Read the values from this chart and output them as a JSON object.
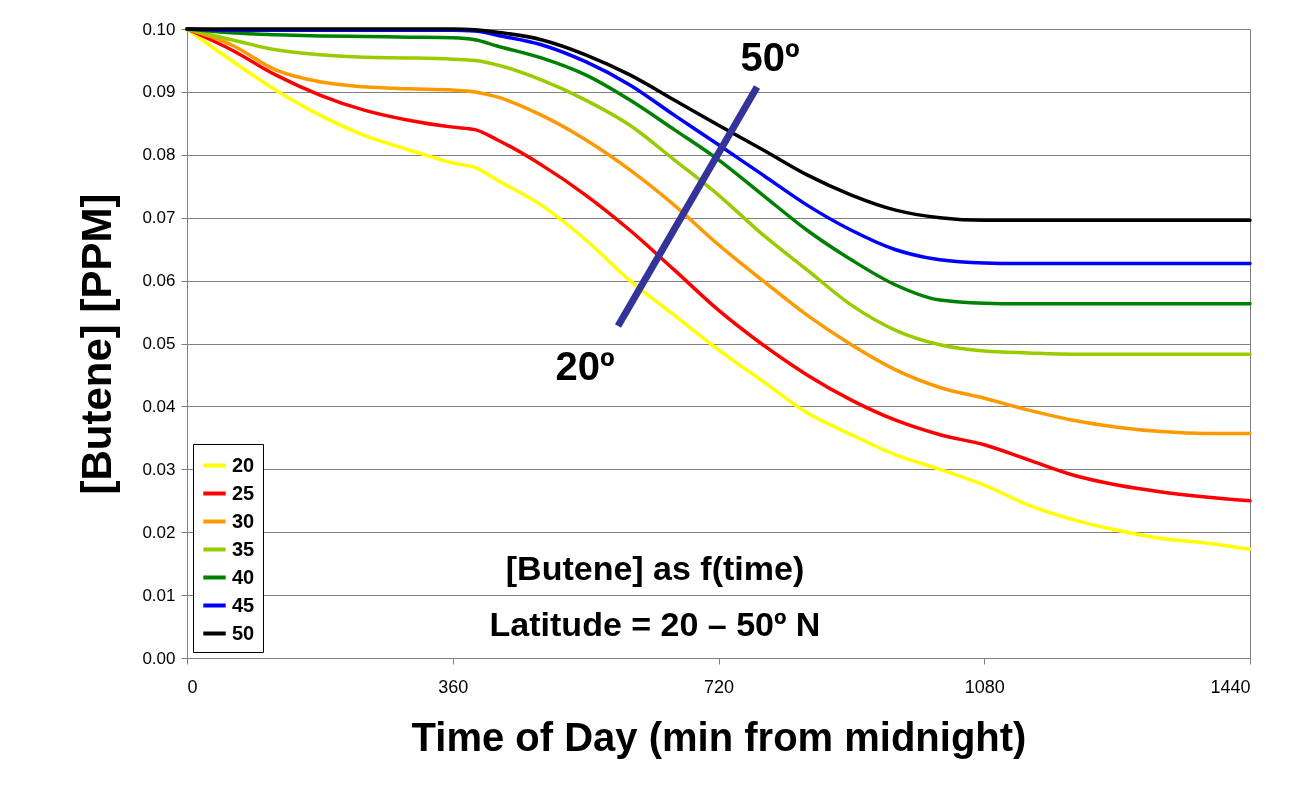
{
  "chart_data": {
    "type": "line",
    "xlabel": "Time of Day (min from midnight)",
    "ylabel": "[Butene] [PPM]",
    "x": [
      0,
      60,
      120,
      180,
      240,
      300,
      360,
      390,
      420,
      480,
      540,
      600,
      660,
      720,
      780,
      840,
      900,
      960,
      1020,
      1080,
      1140,
      1200,
      1260,
      1320,
      1380,
      1440
    ],
    "series": [
      {
        "name": "20",
        "color": "#ffff00",
        "values": [
          0.1,
          0.095,
          0.0903,
          0.0863,
          0.0831,
          0.0808,
          0.0787,
          0.078,
          0.076,
          0.072,
          0.0665,
          0.06,
          0.0545,
          0.049,
          0.044,
          0.039,
          0.0355,
          0.0323,
          0.03,
          0.0275,
          0.0243,
          0.022,
          0.0203,
          0.019,
          0.0183,
          0.0173
        ]
      },
      {
        "name": "25",
        "color": "#ff0000",
        "values": [
          0.1,
          0.0967,
          0.0927,
          0.0895,
          0.0871,
          0.0855,
          0.0844,
          0.084,
          0.0824,
          0.0784,
          0.0736,
          0.068,
          0.0617,
          0.0553,
          0.0498,
          0.045,
          0.041,
          0.0378,
          0.0355,
          0.0339,
          0.0315,
          0.0291,
          0.0275,
          0.0264,
          0.0256,
          0.025
        ]
      },
      {
        "name": "30",
        "color": "#ff9900",
        "values": [
          0.1,
          0.0975,
          0.0935,
          0.0916,
          0.0908,
          0.0905,
          0.0903,
          0.09,
          0.0892,
          0.0863,
          0.0824,
          0.0776,
          0.072,
          0.0657,
          0.06,
          0.0545,
          0.0498,
          0.0458,
          0.043,
          0.0413,
          0.0394,
          0.0378,
          0.0367,
          0.036,
          0.0357,
          0.0357
        ]
      },
      {
        "name": "35",
        "color": "#99cc00",
        "values": [
          0.1,
          0.0983,
          0.0967,
          0.0959,
          0.0955,
          0.0954,
          0.0952,
          0.095,
          0.0943,
          0.0919,
          0.0887,
          0.0847,
          0.0792,
          0.0736,
          0.0673,
          0.0617,
          0.0561,
          0.0521,
          0.0498,
          0.0488,
          0.0485,
          0.0483,
          0.0483,
          0.0483,
          0.0483,
          0.0483
        ]
      },
      {
        "name": "40",
        "color": "#008000",
        "values": [
          0.1,
          0.0994,
          0.0991,
          0.0989,
          0.0988,
          0.0987,
          0.0986,
          0.0983,
          0.0973,
          0.0954,
          0.0927,
          0.0887,
          0.084,
          0.0792,
          0.0736,
          0.068,
          0.0633,
          0.0593,
          0.0569,
          0.0564,
          0.0563,
          0.0563,
          0.0563,
          0.0563,
          0.0563,
          0.0563
        ]
      },
      {
        "name": "45",
        "color": "#0000ff",
        "values": [
          0.1,
          0.0998,
          0.0998,
          0.0998,
          0.0998,
          0.0998,
          0.0998,
          0.0997,
          0.099,
          0.0975,
          0.0948,
          0.0911,
          0.0863,
          0.0816,
          0.0768,
          0.072,
          0.068,
          0.0649,
          0.0633,
          0.0628,
          0.0627,
          0.0627,
          0.0627,
          0.0627,
          0.0627,
          0.0627
        ]
      },
      {
        "name": "50",
        "color": "#000000",
        "values": [
          0.1,
          0.1,
          0.1,
          0.1,
          0.1,
          0.1,
          0.1,
          0.0999,
          0.0995,
          0.0983,
          0.0959,
          0.0927,
          0.0887,
          0.0847,
          0.0808,
          0.0768,
          0.0736,
          0.0712,
          0.07,
          0.0696,
          0.0696,
          0.0696,
          0.0696,
          0.0696,
          0.0696,
          0.0696
        ]
      }
    ],
    "xlim": [
      0,
      1440
    ],
    "xticks": [
      0,
      360,
      720,
      1080,
      1440
    ],
    "ylim": [
      0,
      0.1
    ],
    "yticks": [
      {
        "value": 0,
        "label": "0.00"
      },
      {
        "value": 0.01,
        "label": "0.01"
      },
      {
        "value": 0.02,
        "label": "0.02"
      },
      {
        "value": 0.03,
        "label": "0.03"
      },
      {
        "value": 0.04,
        "label": "0.04"
      },
      {
        "value": 0.05,
        "label": "0.05"
      },
      {
        "value": 0.06,
        "label": "0.06"
      },
      {
        "value": 0.07,
        "label": "0.07"
      },
      {
        "value": 0.08,
        "label": "0.08"
      },
      {
        "value": 0.09,
        "label": "0.09"
      },
      {
        "value": 0.1,
        "label": "0.10"
      }
    ],
    "grid": "y",
    "legend": "bottom left",
    "marker": "none",
    "line_style": "solid",
    "annotations": [
      "50º",
      "20º",
      "[Butene] as f(time)",
      "Latitude = 20 – 50º N"
    ]
  }
}
